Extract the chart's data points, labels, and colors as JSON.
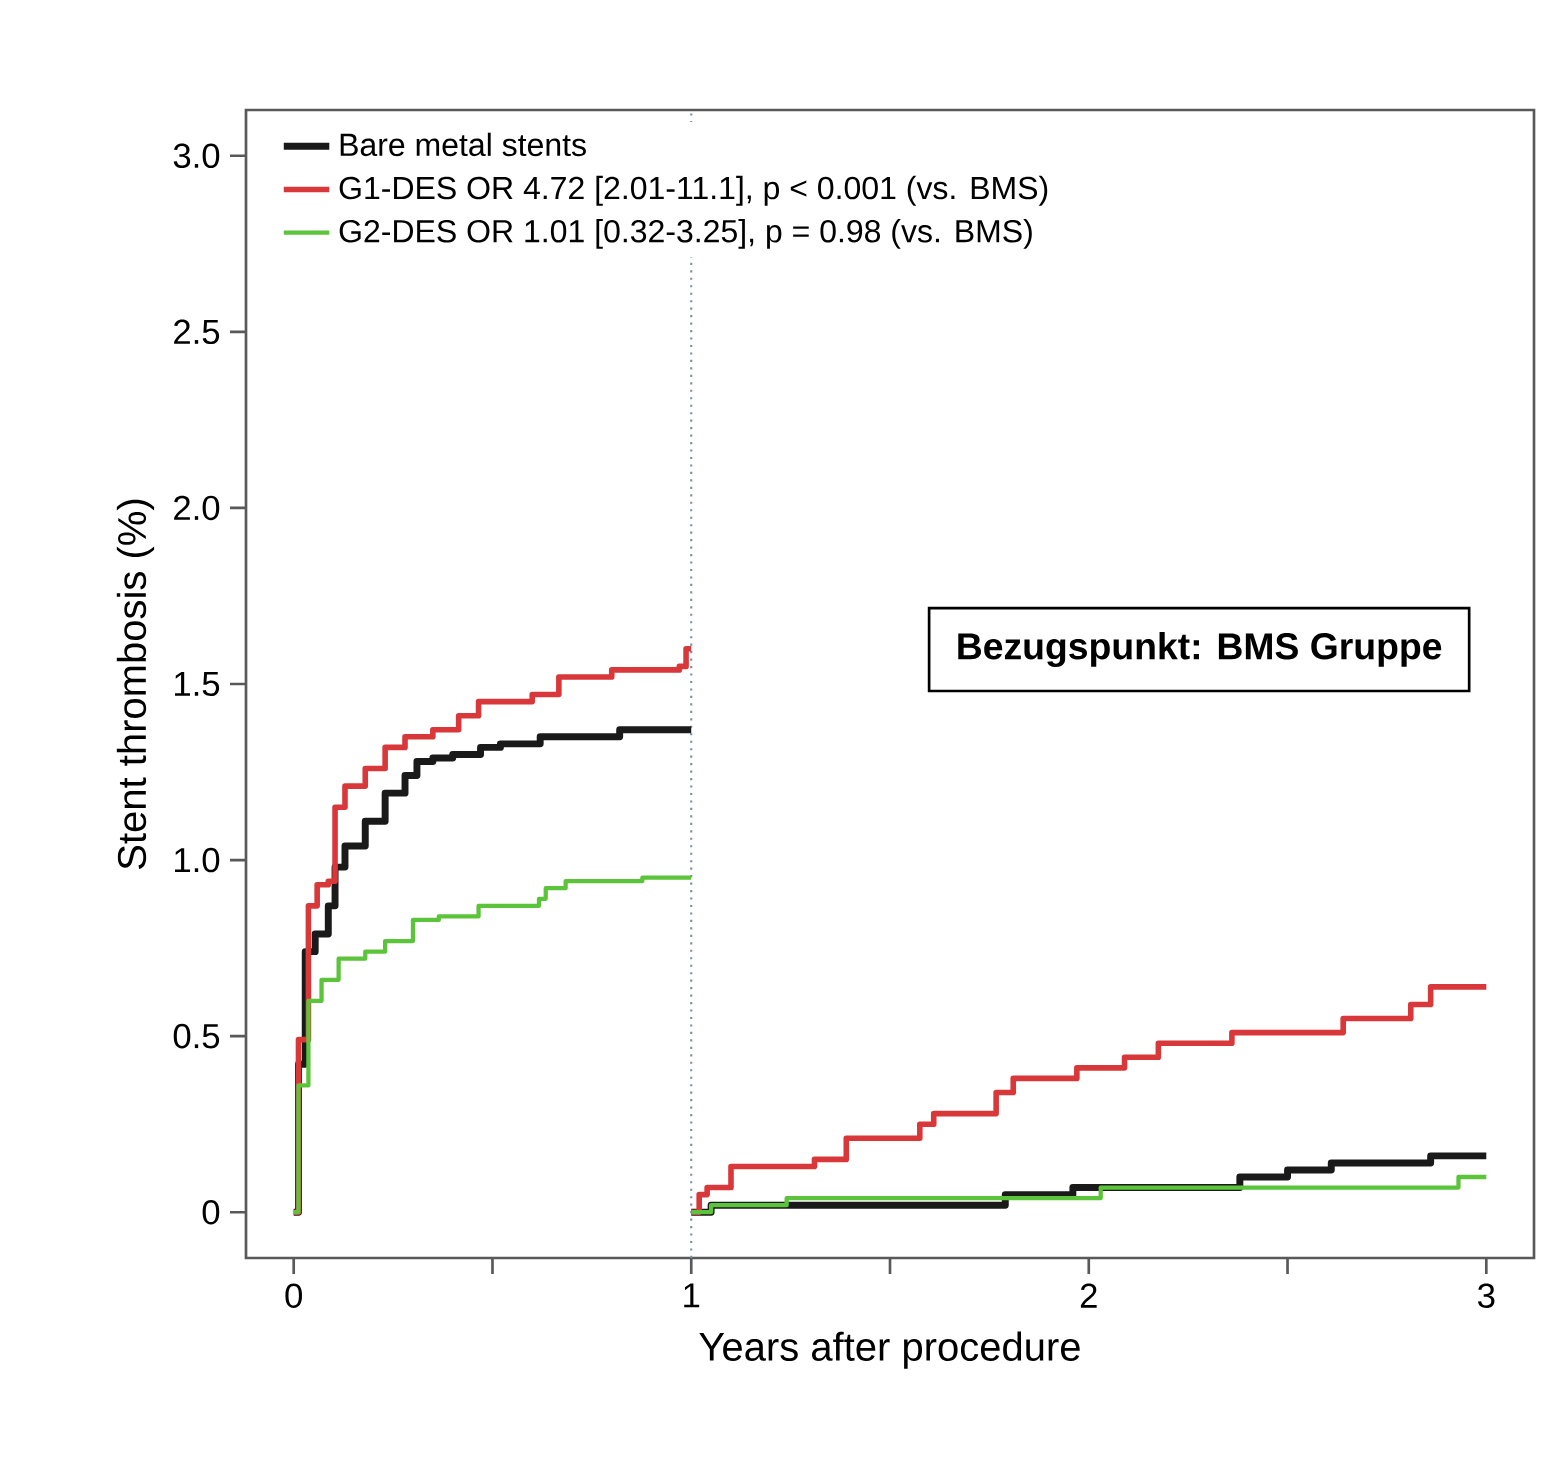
{
  "chart_data": {
    "type": "step",
    "xlabel": "Years after procedure",
    "ylabel": "Stent thrombosis (%)",
    "xlim": [
      -0.12,
      3.12
    ],
    "ylim": [
      -0.13,
      3.13
    ],
    "xticks": [
      0,
      {
        "value": 0.5,
        "label": null
      },
      1,
      {
        "value": 1.5,
        "label": null
      },
      2,
      {
        "value": 2.5,
        "label": null
      },
      3
    ],
    "yticks": [
      0,
      0.5,
      {
        "value": 1,
        "label": "1.0"
      },
      1.5,
      {
        "value": 2,
        "label": "2.0"
      },
      2.5,
      {
        "value": 3,
        "label": "3.0"
      }
    ],
    "legend": "top left",
    "series": [
      {
        "name": "Bare metal stents",
        "color": "#1a1a1a",
        "x": [
          0,
          0.012,
          0.029,
          0.054,
          0.087,
          0.104,
          0.129,
          0.18,
          0.23,
          0.28,
          0.31,
          0.35,
          0.4,
          0.47,
          0.52,
          0.62,
          0.82,
          1,
          null,
          1,
          1.05,
          1.79,
          1.96,
          2.38,
          2.5,
          2.61,
          2.86,
          3
        ],
        "values": [
          0,
          0.42,
          0.74,
          0.79,
          0.87,
          0.98,
          1.04,
          1.11,
          1.19,
          1.24,
          1.28,
          1.29,
          1.3,
          1.32,
          1.33,
          1.35,
          1.37,
          1.37,
          null,
          0,
          0.02,
          0.05,
          0.07,
          0.1,
          0.12,
          0.14,
          0.16,
          0.16
        ]
      },
      {
        "name": "G1-DES  OR 4.72 [2.01-11.1], p < 0.001 (vs. BMS)",
        "color": "#d9383a",
        "x": [
          0,
          0.012,
          0.037,
          0.059,
          0.087,
          0.104,
          0.129,
          0.18,
          0.23,
          0.28,
          0.35,
          0.415,
          0.465,
          0.6,
          0.667,
          0.8,
          0.97,
          0.987,
          1,
          null,
          1,
          1.02,
          1.04,
          1.1,
          1.31,
          1.39,
          1.575,
          1.61,
          1.767,
          1.81,
          1.97,
          2.09,
          2.175,
          2.36,
          2.64,
          2.81,
          2.86,
          3
        ],
        "values": [
          0,
          0.49,
          0.87,
          0.93,
          0.94,
          1.15,
          1.21,
          1.26,
          1.32,
          1.35,
          1.37,
          1.41,
          1.45,
          1.47,
          1.52,
          1.54,
          1.55,
          1.6,
          1.6,
          null,
          0,
          0.05,
          0.07,
          0.13,
          0.15,
          0.21,
          0.25,
          0.28,
          0.34,
          0.38,
          0.41,
          0.44,
          0.48,
          0.51,
          0.55,
          0.59,
          0.64,
          0.64
        ]
      },
      {
        "name": "G2-DES  OR 1.01 [0.32-3.25], p = 0.98   (vs. BMS)",
        "color": "#5cc43a",
        "x": [
          0,
          0.012,
          0.037,
          0.07,
          0.113,
          0.18,
          0.23,
          0.3,
          0.365,
          0.465,
          0.617,
          0.634,
          0.684,
          0.877,
          1,
          null,
          1,
          1.05,
          1.24,
          2.03,
          2.93,
          3
        ],
        "values": [
          0,
          0.36,
          0.6,
          0.66,
          0.72,
          0.74,
          0.77,
          0.83,
          0.84,
          0.87,
          0.89,
          0.92,
          0.94,
          0.95,
          0.95,
          null,
          0,
          0.02,
          0.04,
          0.07,
          0.1,
          0.1
        ]
      }
    ],
    "ref_lines": [
      {
        "axis": "x",
        "value": 1,
        "color": "#7f8fa8",
        "line_style": "dotted"
      }
    ],
    "annotations": [
      "Bezugspunkt: BMS Gruppe"
    ]
  }
}
